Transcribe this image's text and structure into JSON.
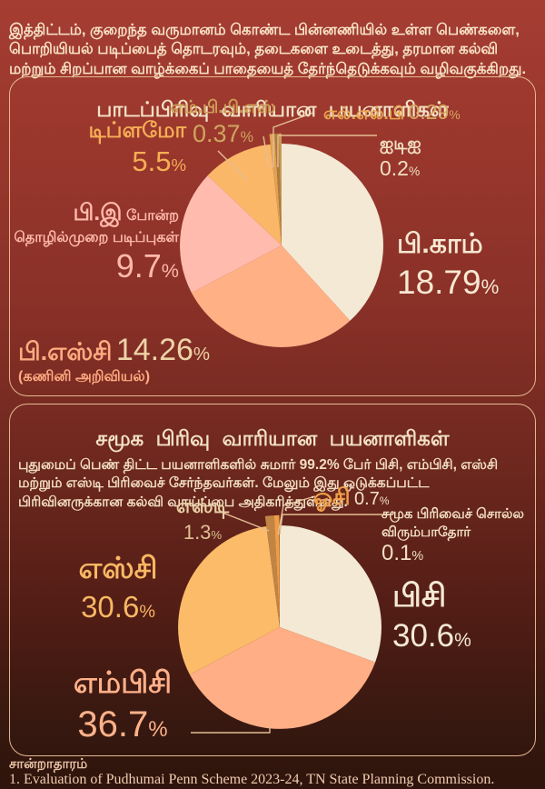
{
  "pct": "%",
  "palette": {
    "background_top": "#a53d33",
    "background_bottom": "#2e140c",
    "card_border": "#e4b88f",
    "title_text": "#f3e2c6"
  },
  "intro": "இத்திட்டம், குறைந்த வருமானம் கொண்ட பின்னணியில் உள்ள பெண்களை, பொறியியல் படிப்பைத் தொடரவும், தடைகளை உடைத்து, தரமான கல்வி மற்றும் சிறப்பான வாழ்க்கைப் பாதையைத் தேர்ந்தெடுக்கவும் வழிவகுக்கிறது.",
  "card1": {
    "title": "பாடப்பிரிவு வாரியான பயனாளிகள்",
    "mbbs": {
      "name": "எம்.பி.பி.எஸ்",
      "value": "0.37"
    },
    "llb": {
      "name": "எல்.எல்.பி",
      "value": "0.29"
    },
    "iti": {
      "name": "ஐடிஐ",
      "value": "0.2"
    },
    "diploma": {
      "name": "டிப்ளமோ",
      "value": "5.5"
    },
    "be": {
      "name_big": "பி.இ",
      "name_small": "போன்ற",
      "name_line2": "தொழில்முறை படிப்புகள்",
      "value": "9.7"
    },
    "bcom": {
      "name": "பி.காம்",
      "value": "18.79"
    },
    "bsc": {
      "name": "பி.எஸ்சி",
      "value": "14.26",
      "sub": "(கணினி அறிவியல்)"
    }
  },
  "card2": {
    "title": "சமூக பிரிவு வாரியான பயனாளிகள்",
    "body": "புதுமைப் பெண் திட்ட பயனாளிகளில் சுமார் 99.2% பேர் பிசி, எம்பிசி, எஸ்சி மற்றும் எஸ்டி பிரிவைச் சேர்ந்தவர்கள். மேலும் இது ஒடுக்கப்பட்ட பிரிவினருக்கான கல்வி வாய்ப்பை அதிகரித்துள்ளது.",
    "st": {
      "name": "எஸ்டி",
      "value": "1.3"
    },
    "oc": {
      "name": "ஓசி",
      "value": "0.7"
    },
    "na": {
      "name_line1": "சமூக பிரிவைச் சொல்ல",
      "name_line2": "விரும்பாதோர்",
      "value": "0.1"
    },
    "sc": {
      "name": "எஸ்சி",
      "value": "30.6"
    },
    "bc": {
      "name": "பிசி",
      "value": "30.6"
    },
    "mbc": {
      "name": "எம்பிசி",
      "value": "36.7"
    }
  },
  "source": {
    "heading": "சான்றாதாரம்",
    "line1": "1. Evaluation of Pudhumai Penn Scheme 2023-24, TN State Planning Commission."
  },
  "chart_data": [
    {
      "type": "pie",
      "title": "பாடப்பிரிவு வாரியான பயனாளிகள்",
      "unit": "%",
      "start": "top",
      "direction": "clockwise",
      "slices": [
        {
          "label": "பி.காம்",
          "value": 18.79,
          "color": "#f4e9d4"
        },
        {
          "label": "பி.எஸ்சி (கணினி அறிவியல்)",
          "value": 14.26,
          "color": "#ffb085"
        },
        {
          "label": "பி.இ போன்ற தொழில்முறை படிப்புகள்",
          "value": 9.7,
          "color": "#ffbcae"
        },
        {
          "label": "டிப்ளமோ",
          "value": 5.5,
          "color": "#fbb768"
        },
        {
          "label": "எம்.பி.பி.எஸ்",
          "value": 0.37,
          "color": "#e0a254"
        },
        {
          "label": "எல்.எல்.பி",
          "value": 0.29,
          "color": "#aa7c3e"
        },
        {
          "label": "ஐடிஐ",
          "value": 0.2,
          "color": "#c89a55"
        }
      ]
    },
    {
      "type": "pie",
      "title": "சமூக பிரிவு வாரியான பயனாளிகள்",
      "unit": "%",
      "start": "top",
      "direction": "clockwise",
      "slices": [
        {
          "label": "பிசி",
          "value": 30.6,
          "color": "#f4e9d4"
        },
        {
          "label": "எம்பிசி",
          "value": 36.7,
          "color": "#ffae85"
        },
        {
          "label": "எஸ்சி",
          "value": 30.6,
          "color": "#fbbb69"
        },
        {
          "label": "எஸ்டி",
          "value": 1.3,
          "color": "#c08544"
        },
        {
          "label": "ஓசி",
          "value": 0.7,
          "color": "#f29d45"
        },
        {
          "label": "சமூக பிரிவைச் சொல்ல விரும்பாதோர்",
          "value": 0.1,
          "color": "#9c6a33"
        }
      ]
    }
  ]
}
